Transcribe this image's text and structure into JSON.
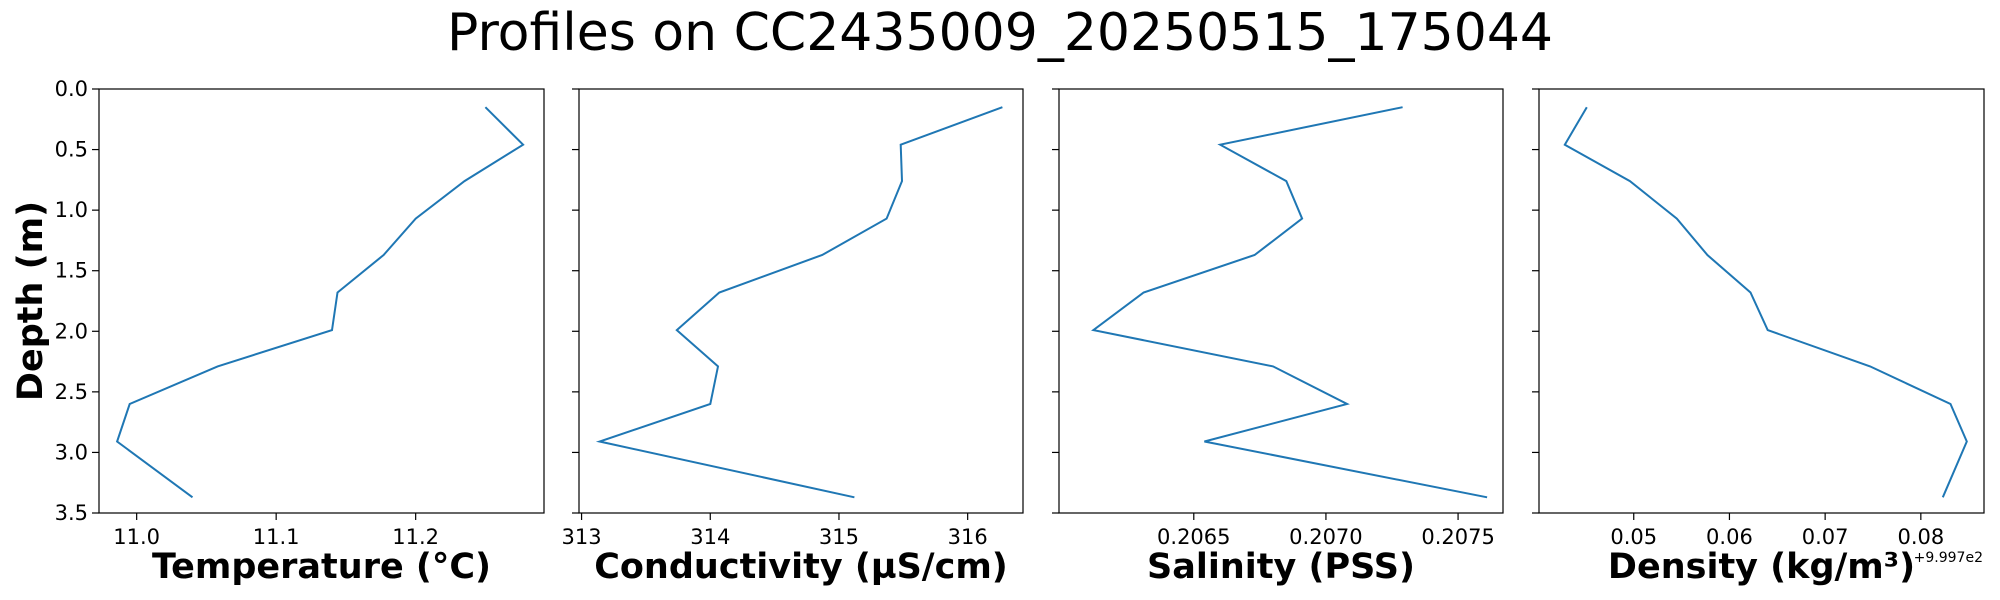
{
  "title": "Profiles on CC2435009_20250515_175044",
  "ylabel": "Depth (m)",
  "chart_data": [
    {
      "type": "line",
      "xlabel": "Temperature (°C)",
      "ylabel": "Depth (m)",
      "xlim": [
        10.973,
        11.292
      ],
      "ylim": [
        3.5,
        0.0
      ],
      "y_inverted": true,
      "xticks": [
        "11.0",
        "11.1",
        "11.2"
      ],
      "xtick_values": [
        11.0,
        11.1,
        11.2
      ],
      "yticks": [
        "0.0",
        "0.5",
        "1.0",
        "1.5",
        "2.0",
        "2.5",
        "3.0",
        "3.5"
      ],
      "ytick_values": [
        0.0,
        0.5,
        1.0,
        1.5,
        2.0,
        2.5,
        3.0,
        3.5
      ],
      "series_color": "#1f77b4",
      "grid": false,
      "x": [
        11.25,
        11.277,
        11.235,
        11.2,
        11.177,
        11.144,
        11.14,
        11.058,
        10.995,
        10.986,
        11.04
      ],
      "y": [
        0.15,
        0.46,
        0.76,
        1.07,
        1.37,
        1.68,
        1.99,
        2.29,
        2.6,
        2.91,
        3.37
      ]
    },
    {
      "type": "line",
      "xlabel": "Conductivity (µS/cm)",
      "xlim": [
        312.98,
        316.43
      ],
      "ylim": [
        3.5,
        0.0
      ],
      "y_inverted": true,
      "xticks": [
        "313",
        "314",
        "315",
        "316"
      ],
      "xtick_values": [
        313,
        314,
        315,
        316
      ],
      "series_color": "#1f77b4",
      "grid": false,
      "x": [
        316.27,
        315.48,
        315.49,
        315.37,
        314.87,
        314.07,
        313.74,
        314.06,
        314.0,
        313.14,
        315.12
      ],
      "y": [
        0.15,
        0.46,
        0.76,
        1.07,
        1.37,
        1.68,
        1.99,
        2.29,
        2.6,
        2.91,
        3.37
      ]
    },
    {
      "type": "line",
      "xlabel": "Salinity (PSS)",
      "xlim": [
        0.20599,
        0.20767
      ],
      "ylim": [
        3.5,
        0.0
      ],
      "y_inverted": true,
      "xticks": [
        "0.2065",
        "0.2070",
        "0.2075"
      ],
      "xtick_values": [
        0.2065,
        0.207,
        0.2075
      ],
      "series_color": "#1f77b4",
      "grid": false,
      "x": [
        0.20729,
        0.2066,
        0.20685,
        0.20691,
        0.20673,
        0.20631,
        0.20612,
        0.2068,
        0.20708,
        0.20654,
        0.20761
      ],
      "y": [
        0.15,
        0.46,
        0.76,
        1.07,
        1.37,
        1.68,
        1.99,
        2.29,
        2.6,
        2.91,
        3.37
      ]
    },
    {
      "type": "line",
      "xlabel": "Density (kg/m³)",
      "x_offset_label": "+9.997e2",
      "xlim": [
        0.0401,
        0.0866
      ],
      "ylim": [
        3.5,
        0.0
      ],
      "y_inverted": true,
      "xticks": [
        "0.05",
        "0.06",
        "0.07",
        "0.08"
      ],
      "xtick_values": [
        0.05,
        0.06,
        0.07,
        0.08
      ],
      "series_color": "#1f77b4",
      "grid": false,
      "x": [
        0.0451,
        0.0428,
        0.0496,
        0.0545,
        0.0577,
        0.0622,
        0.064,
        0.0747,
        0.0831,
        0.0848,
        0.0823
      ],
      "y": [
        0.15,
        0.46,
        0.76,
        1.07,
        1.37,
        1.68,
        1.99,
        2.29,
        2.6,
        2.91,
        3.37
      ]
    }
  ]
}
